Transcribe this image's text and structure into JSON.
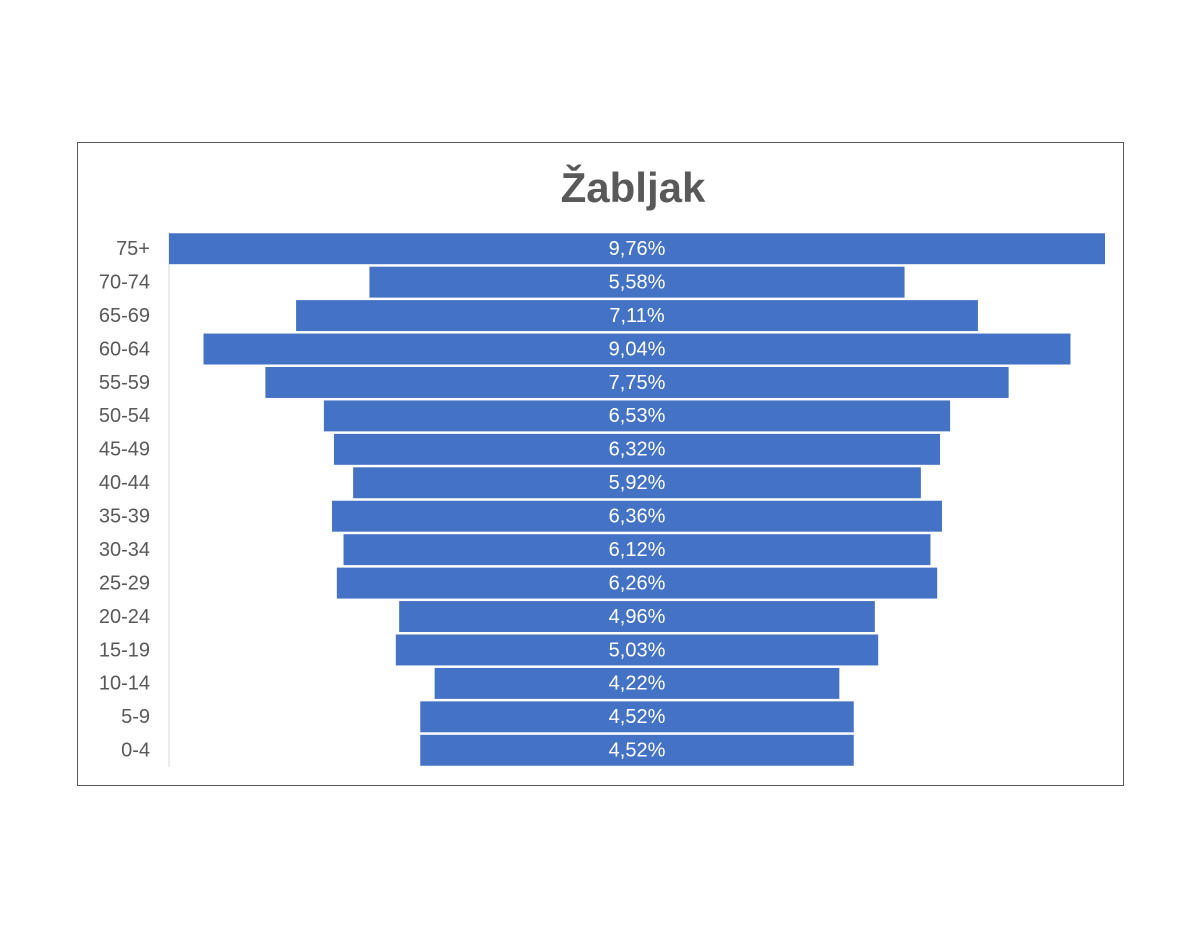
{
  "chart_data": {
    "type": "funnel",
    "title": "Žabljak",
    "categories": [
      "75+",
      "70-74",
      "65-69",
      "60-64",
      "55-59",
      "50-54",
      "45-49",
      "40-44",
      "35-39",
      "30-34",
      "25-29",
      "20-24",
      "15-19",
      "10-14",
      "5-9",
      "0-4"
    ],
    "values": [
      9.76,
      5.58,
      7.11,
      9.04,
      7.75,
      6.53,
      6.32,
      5.92,
      6.36,
      6.12,
      6.26,
      4.96,
      5.03,
      4.22,
      4.52,
      4.52
    ],
    "value_labels": [
      "9,76%",
      "5,58%",
      "7,11%",
      "9,04%",
      "7,75%",
      "6,53%",
      "6,32%",
      "5,92%",
      "6,36%",
      "6,12%",
      "6,26%",
      "4,96%",
      "5,03%",
      "4,22%",
      "4,52%",
      "4,52%"
    ],
    "color": "#4472c4"
  }
}
